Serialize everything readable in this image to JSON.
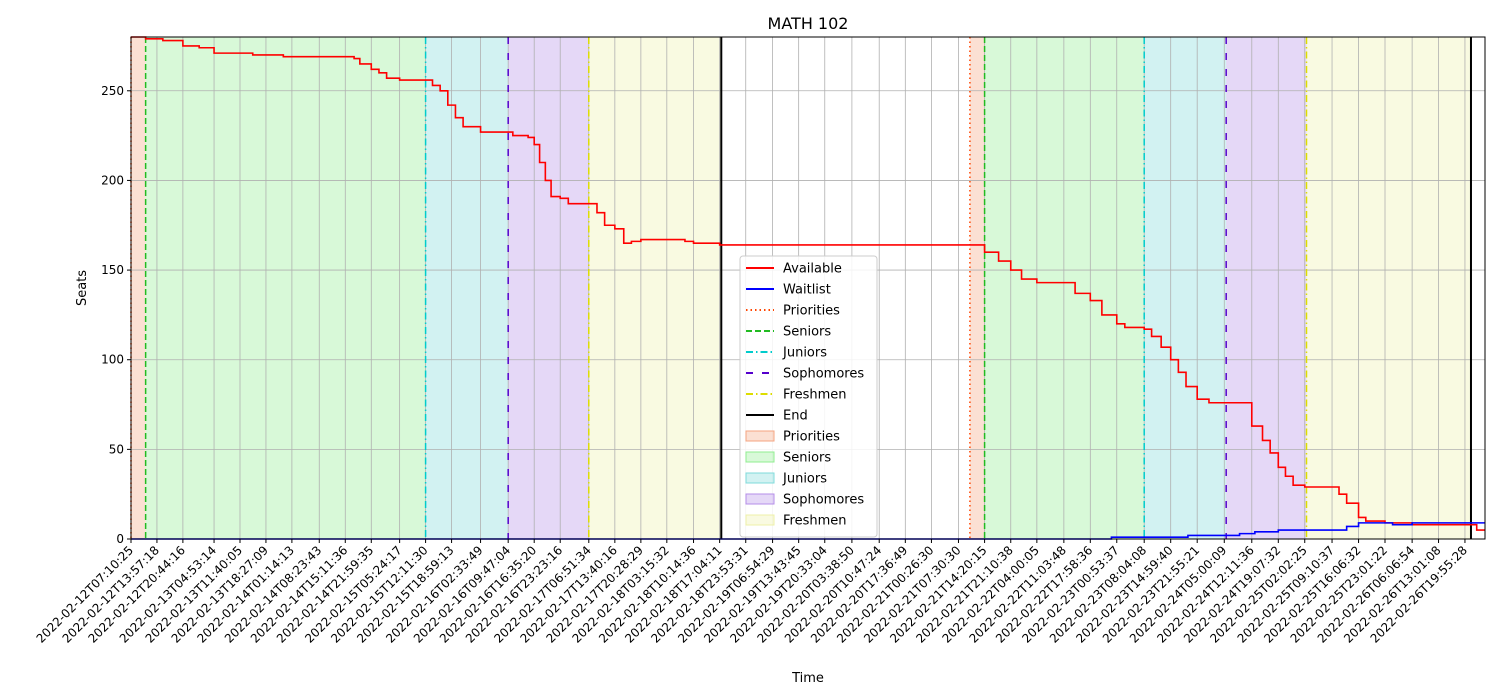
{
  "chart_data": {
    "type": "line",
    "title": "MATH 102",
    "xlabel": "Time",
    "ylabel": "Seats",
    "xlim": [
      "2022-02-12T07:10:25",
      "2022-02-27T01:10:00"
    ],
    "ylim": [
      0,
      280
    ],
    "yticks": [
      0,
      50,
      100,
      150,
      200,
      250
    ],
    "grid": true,
    "legend_position": "center",
    "xtick_labels": [
      "2022-02-12T07:10:25",
      "2022-02-12T13:57:18",
      "2022-02-12T20:44:16",
      "2022-02-13T04:53:14",
      "2022-02-13T11:40:05",
      "2022-02-13T18:27:09",
      "2022-02-14T01:14:13",
      "2022-02-14T08:23:43",
      "2022-02-14T15:11:36",
      "2022-02-14T21:59:35",
      "2022-02-15T05:24:17",
      "2022-02-15T12:11:30",
      "2022-02-15T18:59:13",
      "2022-02-16T02:33:49",
      "2022-02-16T09:47:04",
      "2022-02-16T16:35:20",
      "2022-02-16T23:23:16",
      "2022-02-17T06:51:34",
      "2022-02-17T13:40:16",
      "2022-02-17T20:28:29",
      "2022-02-18T03:15:32",
      "2022-02-18T10:14:36",
      "2022-02-18T17:04:11",
      "2022-02-18T23:53:31",
      "2022-02-19T06:54:29",
      "2022-02-19T13:43:45",
      "2022-02-19T20:33:04",
      "2022-02-20T03:38:50",
      "2022-02-20T10:47:24",
      "2022-02-20T17:36:49",
      "2022-02-21T00:26:30",
      "2022-02-21T07:30:30",
      "2022-02-21T14:20:15",
      "2022-02-21T21:10:38",
      "2022-02-22T04:00:05",
      "2022-02-22T11:03:48",
      "2022-02-22T17:58:36",
      "2022-02-23T00:53:37",
      "2022-02-23T08:04:08",
      "2022-02-23T14:59:40",
      "2022-02-23T21:55:21",
      "2022-02-24T05:00:09",
      "2022-02-24T12:11:36",
      "2022-02-24T19:07:32",
      "2022-02-25T02:02:25",
      "2022-02-25T09:10:37",
      "2022-02-25T16:06:32",
      "2022-02-25T23:01:22",
      "2022-02-26T06:06:54",
      "2022-02-26T13:01:08",
      "2022-02-26T19:55:28"
    ],
    "series": [
      {
        "name": "Available",
        "color": "#ff0000",
        "points": [
          [
            "2022-02-12T07:10:25",
            280
          ],
          [
            "2022-02-12T11:00:00",
            279
          ],
          [
            "2022-02-12T15:30:00",
            278
          ],
          [
            "2022-02-12T20:44:16",
            275
          ],
          [
            "2022-02-13T01:00:00",
            274
          ],
          [
            "2022-02-13T04:53:14",
            271
          ],
          [
            "2022-02-13T15:00:00",
            270
          ],
          [
            "2022-02-13T23:00:00",
            269
          ],
          [
            "2022-02-14T15:11:36",
            269
          ],
          [
            "2022-02-14T17:30:00",
            268
          ],
          [
            "2022-02-14T19:00:00",
            265
          ],
          [
            "2022-02-14T21:59:35",
            262
          ],
          [
            "2022-02-15T00:00:00",
            260
          ],
          [
            "2022-02-15T02:00:00",
            257
          ],
          [
            "2022-02-15T05:24:17",
            256
          ],
          [
            "2022-02-15T12:11:30",
            256
          ],
          [
            "2022-02-15T14:00:00",
            253
          ],
          [
            "2022-02-15T16:00:00",
            250
          ],
          [
            "2022-02-15T18:00:00",
            242
          ],
          [
            "2022-02-15T20:00:00",
            235
          ],
          [
            "2022-02-15T22:00:00",
            230
          ],
          [
            "2022-02-16T02:33:49",
            227
          ],
          [
            "2022-02-16T09:47:04",
            227
          ],
          [
            "2022-02-16T11:00:00",
            225
          ],
          [
            "2022-02-16T15:00:00",
            224
          ],
          [
            "2022-02-16T16:35:20",
            220
          ],
          [
            "2022-02-16T18:00:00",
            210
          ],
          [
            "2022-02-16T19:30:00",
            200
          ],
          [
            "2022-02-16T21:00:00",
            191
          ],
          [
            "2022-02-16T23:23:16",
            190
          ],
          [
            "2022-02-17T01:30:00",
            187
          ],
          [
            "2022-02-17T06:51:34",
            187
          ],
          [
            "2022-02-17T09:00:00",
            182
          ],
          [
            "2022-02-17T11:00:00",
            175
          ],
          [
            "2022-02-17T13:40:16",
            173
          ],
          [
            "2022-02-17T16:00:00",
            165
          ],
          [
            "2022-02-17T18:00:00",
            166
          ],
          [
            "2022-02-17T20:28:29",
            167
          ],
          [
            "2022-02-18T08:00:00",
            166
          ],
          [
            "2022-02-18T10:14:36",
            165
          ],
          [
            "2022-02-18T17:04:11",
            164
          ],
          [
            "2022-02-18T23:53:31",
            164
          ],
          [
            "2022-02-21T11:00:00",
            164
          ],
          [
            "2022-02-21T14:20:15",
            160
          ],
          [
            "2022-02-21T18:00:00",
            155
          ],
          [
            "2022-02-21T21:10:38",
            150
          ],
          [
            "2022-02-22T00:00:00",
            145
          ],
          [
            "2022-02-22T04:00:05",
            143
          ],
          [
            "2022-02-22T11:03:48",
            143
          ],
          [
            "2022-02-22T14:00:00",
            137
          ],
          [
            "2022-02-22T17:58:36",
            133
          ],
          [
            "2022-02-22T21:00:00",
            125
          ],
          [
            "2022-02-23T00:53:37",
            120
          ],
          [
            "2022-02-23T03:00:00",
            118
          ],
          [
            "2022-02-23T08:04:08",
            117
          ],
          [
            "2022-02-23T10:00:00",
            113
          ],
          [
            "2022-02-23T12:30:00",
            107
          ],
          [
            "2022-02-23T14:59:40",
            100
          ],
          [
            "2022-02-23T17:00:00",
            93
          ],
          [
            "2022-02-23T19:00:00",
            85
          ],
          [
            "2022-02-23T21:55:21",
            78
          ],
          [
            "2022-02-24T01:00:00",
            76
          ],
          [
            "2022-02-24T09:00:00",
            76
          ],
          [
            "2022-02-24T12:11:36",
            63
          ],
          [
            "2022-02-24T15:00:00",
            55
          ],
          [
            "2022-02-24T17:00:00",
            48
          ],
          [
            "2022-02-24T19:07:32",
            40
          ],
          [
            "2022-02-24T21:00:00",
            35
          ],
          [
            "2022-02-24T23:00:00",
            30
          ],
          [
            "2022-02-25T02:02:25",
            29
          ],
          [
            "2022-02-25T09:10:37",
            29
          ],
          [
            "2022-02-25T11:00:00",
            25
          ],
          [
            "2022-02-25T13:00:00",
            20
          ],
          [
            "2022-02-25T16:06:32",
            12
          ],
          [
            "2022-02-25T18:00:00",
            10
          ],
          [
            "2022-02-25T23:01:22",
            9
          ],
          [
            "2022-02-26T06:06:54",
            8
          ],
          [
            "2022-02-26T19:55:28",
            8
          ],
          [
            "2022-02-26T23:00:00",
            5
          ],
          [
            "2022-02-27T01:10:00",
            5
          ]
        ]
      },
      {
        "name": "Waitlist",
        "color": "#0000ff",
        "points": [
          [
            "2022-02-12T07:10:25",
            0
          ],
          [
            "2022-02-22T23:00:00",
            0
          ],
          [
            "2022-02-22T23:30:00",
            1
          ],
          [
            "2022-02-23T19:00:00",
            1
          ],
          [
            "2022-02-23T19:30:00",
            2
          ],
          [
            "2022-02-24T09:00:00",
            3
          ],
          [
            "2022-02-24T13:00:00",
            4
          ],
          [
            "2022-02-24T19:07:32",
            5
          ],
          [
            "2022-02-25T02:02:25",
            5
          ],
          [
            "2022-02-25T09:10:37",
            5
          ],
          [
            "2022-02-25T13:00:00",
            7
          ],
          [
            "2022-02-25T16:06:32",
            9
          ],
          [
            "2022-02-25T23:01:22",
            9
          ],
          [
            "2022-02-26T01:00:00",
            8
          ],
          [
            "2022-02-26T06:06:54",
            9
          ],
          [
            "2022-02-27T01:10:00",
            9
          ]
        ]
      }
    ],
    "phases": [
      {
        "name": "Priorities",
        "start": "2022-02-12T07:10:25",
        "end": "2022-02-12T11:00:00",
        "color": "#f4a582",
        "line_color": "#ff4500",
        "line_style": "dotted"
      },
      {
        "name": "Seniors",
        "start": "2022-02-12T11:00:00",
        "end": "2022-02-15T12:11:30",
        "color": "#90ee90",
        "line_color": "#22bb22",
        "line_style": "dashed"
      },
      {
        "name": "Juniors",
        "start": "2022-02-15T12:11:30",
        "end": "2022-02-16T09:47:04",
        "color": "#7fdbdb",
        "line_color": "#00cccc",
        "line_style": "dashdot"
      },
      {
        "name": "Sophomores",
        "start": "2022-02-16T09:47:04",
        "end": "2022-02-17T06:51:34",
        "color": "#b58ee8",
        "line_color": "#5500cc",
        "line_style": "loosedash"
      },
      {
        "name": "Freshmen",
        "start": "2022-02-17T06:51:34",
        "end": "2022-02-18T17:30:00",
        "color": "#eef0a8",
        "line_color": "#dddd00",
        "line_style": "dashdot"
      },
      {
        "name": "Priorities",
        "start": "2022-02-21T10:30:00",
        "end": "2022-02-21T14:20:15",
        "color": "#f4a582",
        "line_color": "#ff4500",
        "line_style": "dotted"
      },
      {
        "name": "Seniors",
        "start": "2022-02-21T14:20:15",
        "end": "2022-02-23T08:04:08",
        "color": "#90ee90",
        "line_color": "#22bb22",
        "line_style": "dashed"
      },
      {
        "name": "Juniors",
        "start": "2022-02-23T08:04:08",
        "end": "2022-02-24T05:30:00",
        "color": "#7fdbdb",
        "line_color": "#00cccc",
        "line_style": "dashdot"
      },
      {
        "name": "Sophomores",
        "start": "2022-02-24T05:30:00",
        "end": "2022-02-25T02:30:00",
        "color": "#b58ee8",
        "line_color": "#5500cc",
        "line_style": "loosedash"
      },
      {
        "name": "Freshmen",
        "start": "2022-02-25T02:30:00",
        "end": "2022-02-26T21:30:00",
        "color": "#eef0a8",
        "line_color": "#dddd00",
        "line_style": "dashdot"
      }
    ],
    "end_markers": [
      "2022-02-18T17:30:00",
      "2022-02-26T21:30:00"
    ],
    "legend": [
      {
        "label": "Available",
        "kind": "line",
        "color": "#ff0000",
        "style": "solid"
      },
      {
        "label": "Waitlist",
        "kind": "line",
        "color": "#0000ff",
        "style": "solid"
      },
      {
        "label": "Priorities",
        "kind": "line",
        "color": "#ff4500",
        "style": "dotted"
      },
      {
        "label": "Seniors",
        "kind": "line",
        "color": "#22bb22",
        "style": "dashed"
      },
      {
        "label": "Juniors",
        "kind": "line",
        "color": "#00cccc",
        "style": "dashdot"
      },
      {
        "label": "Sophomores",
        "kind": "line",
        "color": "#5500cc",
        "style": "loosedash"
      },
      {
        "label": "Freshmen",
        "kind": "line",
        "color": "#dddd00",
        "style": "dashdot"
      },
      {
        "label": "End",
        "kind": "line",
        "color": "#000000",
        "style": "solid"
      },
      {
        "label": "Priorities",
        "kind": "patch",
        "color": "#f4a582"
      },
      {
        "label": "Seniors",
        "kind": "patch",
        "color": "#90ee90"
      },
      {
        "label": "Juniors",
        "kind": "patch",
        "color": "#7fdbdb"
      },
      {
        "label": "Sophomores",
        "kind": "patch",
        "color": "#b58ee8"
      },
      {
        "label": "Freshmen",
        "kind": "patch",
        "color": "#eef0a8"
      }
    ]
  }
}
